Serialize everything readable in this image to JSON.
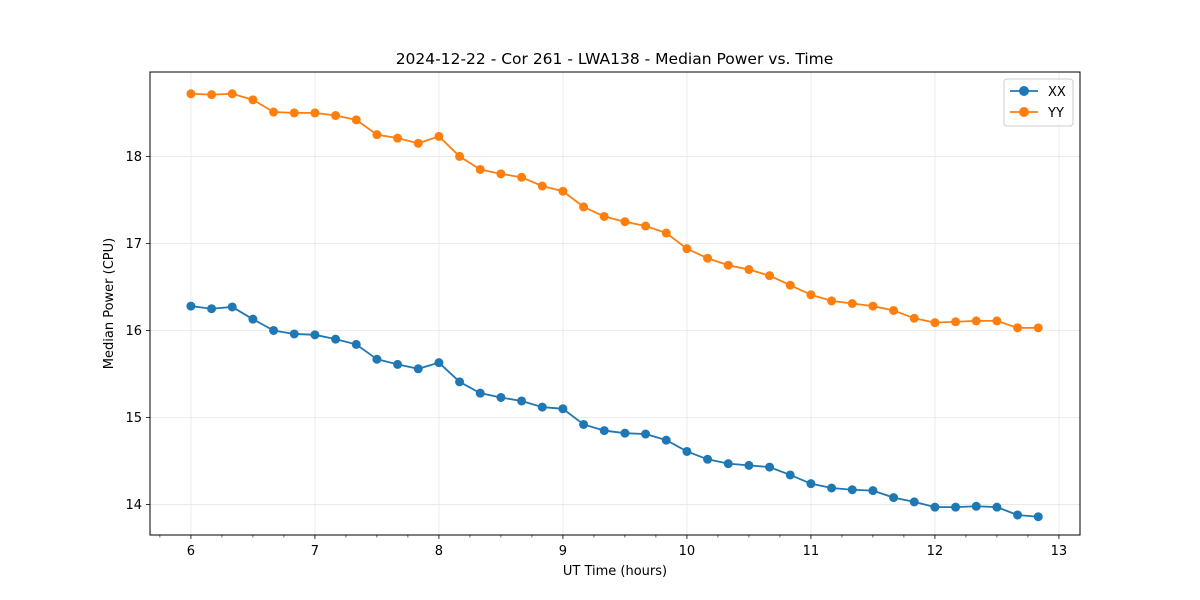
{
  "chart_data": {
    "type": "line",
    "title": "2024-12-22 - Cor 261 - LWA138 - Median Power vs. Time",
    "xlabel": "UT Time (hours)",
    "ylabel": "Median Power (CPU)",
    "xlim": [
      5.67,
      13.17
    ],
    "ylim": [
      13.65,
      18.97
    ],
    "xticks": [
      6,
      7,
      8,
      9,
      10,
      11,
      12,
      13
    ],
    "yticks": [
      14,
      15,
      16,
      17,
      18
    ],
    "grid": true,
    "legend_position": "top-right",
    "x": [
      6.0,
      6.1667,
      6.3333,
      6.5,
      6.6667,
      6.8333,
      7.0,
      7.1667,
      7.3333,
      7.5,
      7.6667,
      7.8333,
      8.0,
      8.1667,
      8.3333,
      8.5,
      8.6667,
      8.8333,
      9.0,
      9.1667,
      9.3333,
      9.5,
      9.6667,
      9.8333,
      10.0,
      10.1667,
      10.3333,
      10.5,
      10.6667,
      10.8333,
      11.0,
      11.1667,
      11.3333,
      11.5,
      11.6667,
      11.8333,
      12.0,
      12.1667,
      12.3333,
      12.5,
      12.6667,
      12.8333
    ],
    "series": [
      {
        "name": "XX",
        "color": "#1f77b4",
        "values": [
          16.28,
          16.25,
          16.27,
          16.13,
          16.0,
          15.96,
          15.95,
          15.9,
          15.84,
          15.67,
          15.61,
          15.56,
          15.63,
          15.41,
          15.28,
          15.23,
          15.19,
          15.12,
          15.1,
          14.92,
          14.85,
          14.82,
          14.81,
          14.74,
          14.61,
          14.52,
          14.47,
          14.45,
          14.43,
          14.34,
          14.24,
          14.19,
          14.17,
          14.16,
          14.08,
          14.03,
          13.97,
          13.97,
          13.98,
          13.97,
          13.88,
          13.86
        ]
      },
      {
        "name": "YY",
        "color": "#ff7f0e",
        "values": [
          18.72,
          18.71,
          18.72,
          18.65,
          18.51,
          18.5,
          18.5,
          18.47,
          18.42,
          18.25,
          18.21,
          18.15,
          18.23,
          18.0,
          17.85,
          17.8,
          17.76,
          17.66,
          17.6,
          17.42,
          17.31,
          17.25,
          17.2,
          17.12,
          16.94,
          16.83,
          16.75,
          16.7,
          16.63,
          16.52,
          16.41,
          16.34,
          16.31,
          16.28,
          16.23,
          16.14,
          16.09,
          16.1,
          16.11,
          16.11,
          16.03,
          16.03
        ]
      }
    ]
  }
}
